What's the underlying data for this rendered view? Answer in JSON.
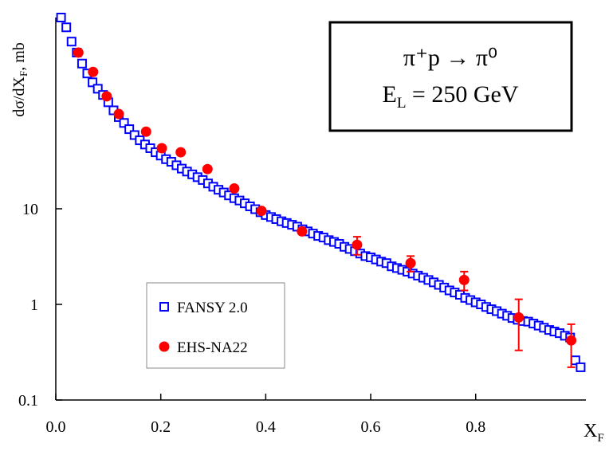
{
  "chart_data": {
    "type": "scatter",
    "log_y": true,
    "y_label": "dσ/dX",
    "y_label_sub": "F",
    "y_label_end": ", mb",
    "x_label": "X",
    "x_label_sub": "F",
    "annotation": {
      "line1": "π⁺p → π⁰",
      "line2": "E",
      "line2_sub": "L",
      "line2_rest": " = 250 GeV"
    },
    "xlim": [
      0,
      1.01
    ],
    "xticks": [
      {
        "value": 0,
        "label": "0.0"
      },
      0.2,
      0.4,
      0.6,
      0.8
    ],
    "ylim": [
      0.1,
      1000
    ],
    "yticks": [
      0.1,
      1,
      10
    ],
    "legend": "lower left",
    "series": [
      {
        "name": "FANSY 2.0",
        "color": "#0000ff",
        "marker": "square",
        "x": [
          0.01,
          0.02,
          0.03,
          0.04,
          0.05,
          0.06,
          0.07,
          0.08,
          0.09,
          0.1,
          0.11,
          0.12,
          0.13,
          0.14,
          0.15,
          0.16,
          0.17,
          0.18,
          0.19,
          0.2,
          0.21,
          0.22,
          0.23,
          0.24,
          0.25,
          0.26,
          0.27,
          0.28,
          0.29,
          0.3,
          0.31,
          0.32,
          0.33,
          0.34,
          0.35,
          0.36,
          0.37,
          0.38,
          0.39,
          0.4,
          0.41,
          0.42,
          0.43,
          0.44,
          0.45,
          0.46,
          0.47,
          0.48,
          0.49,
          0.5,
          0.51,
          0.52,
          0.53,
          0.54,
          0.55,
          0.56,
          0.57,
          0.58,
          0.59,
          0.6,
          0.61,
          0.62,
          0.63,
          0.64,
          0.65,
          0.66,
          0.67,
          0.68,
          0.69,
          0.7,
          0.71,
          0.72,
          0.73,
          0.74,
          0.75,
          0.76,
          0.77,
          0.78,
          0.79,
          0.8,
          0.81,
          0.82,
          0.83,
          0.84,
          0.85,
          0.86,
          0.87,
          0.88,
          0.89,
          0.9,
          0.91,
          0.92,
          0.93,
          0.94,
          0.95,
          0.96,
          0.97,
          0.98,
          0.99,
          1.0
        ],
        "values": [
          1000,
          790,
          560,
          430,
          330,
          260,
          210,
          180,
          155,
          130,
          107,
          91,
          79,
          68,
          59,
          52,
          47,
          43,
          39,
          36,
          33,
          31,
          28.5,
          26.3,
          24.5,
          22.9,
          21.4,
          20,
          18.4,
          17,
          15.8,
          14.8,
          13.8,
          12.9,
          12.2,
          11.4,
          10.6,
          9.9,
          9.2,
          8.6,
          8.2,
          7.8,
          7.4,
          7.1,
          6.8,
          6.5,
          6.1,
          5.8,
          5.5,
          5.2,
          5.0,
          4.7,
          4.5,
          4.3,
          4.0,
          3.8,
          3.6,
          3.4,
          3.2,
          3.1,
          2.95,
          2.8,
          2.7,
          2.5,
          2.4,
          2.3,
          2.2,
          2.1,
          2.0,
          1.9,
          1.8,
          1.7,
          1.6,
          1.5,
          1.4,
          1.33,
          1.26,
          1.17,
          1.11,
          1.05,
          1.0,
          0.94,
          0.89,
          0.85,
          0.8,
          0.76,
          0.72,
          0.69,
          0.67,
          0.66,
          0.63,
          0.6,
          0.57,
          0.54,
          0.52,
          0.5,
          0.47,
          0.45,
          0.26,
          0.22
        ]
      },
      {
        "name": "EHS-NA22",
        "color": "#ff0000",
        "marker": "circle",
        "x": [
          0.043,
          0.071,
          0.097,
          0.12,
          0.172,
          0.202,
          0.238,
          0.289,
          0.34,
          0.392,
          0.469,
          0.574,
          0.676,
          0.778,
          0.882,
          0.982
        ],
        "values": [
          430,
          270,
          150,
          98,
          64,
          43,
          39,
          26,
          16.3,
          9.5,
          5.8,
          4.2,
          2.7,
          1.8,
          0.73,
          0.42
        ],
        "errors": [
          null,
          null,
          null,
          null,
          null,
          null,
          null,
          null,
          null,
          null,
          null,
          0.9,
          0.5,
          0.4,
          0.4,
          0.2
        ]
      }
    ]
  }
}
